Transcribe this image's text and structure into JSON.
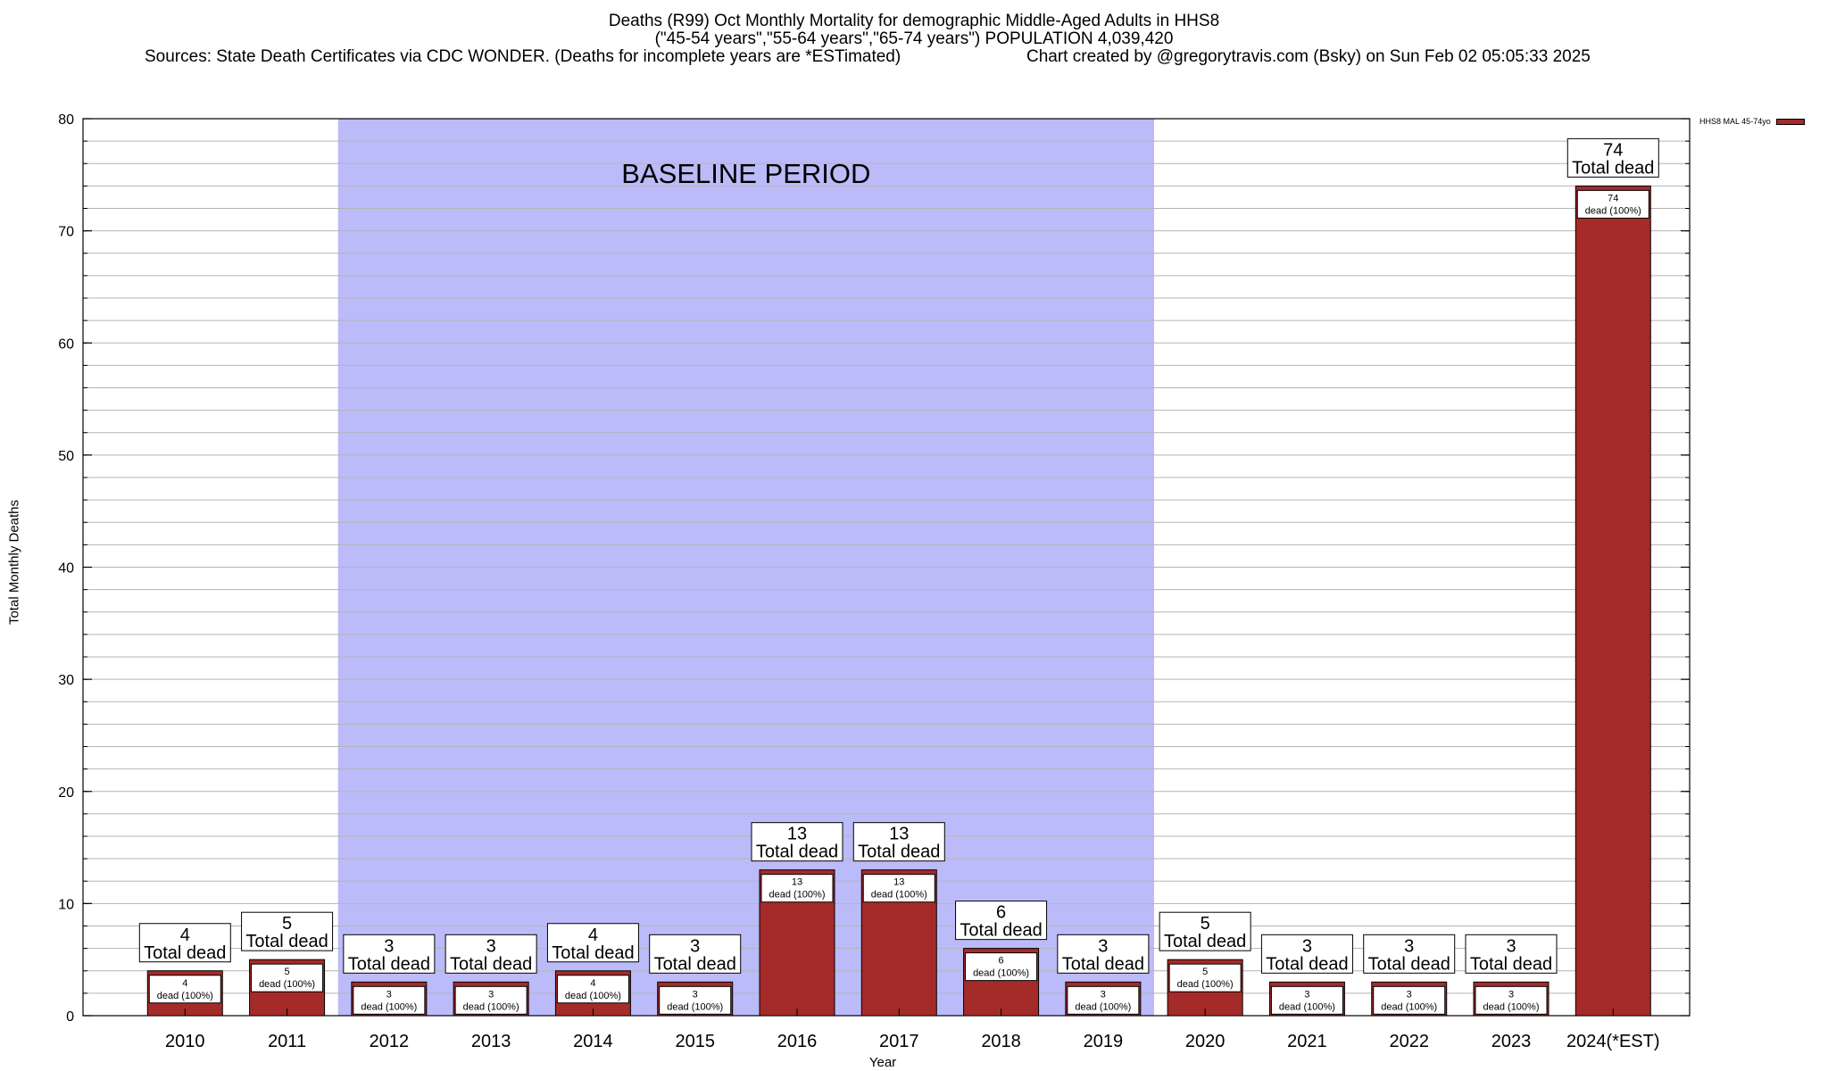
{
  "title": {
    "line1": "Deaths (R99) Oct Monthly Mortality for demographic Middle-Aged Adults in HHS8",
    "line2": "(\"45-54 years\",\"55-64 years\",\"65-74 years\") POPULATION 4,039,420",
    "sources": "Sources: State Death Certificates via CDC WONDER. (Deaths for incomplete years are *ESTimated)",
    "credit": "Chart created by @gregorytravis.com (Bsky) on Sun Feb 02 05:05:33 2025"
  },
  "chart_data": {
    "type": "bar",
    "xlabel": "Year",
    "ylabel": "Total Monthly Deaths",
    "ylim": [
      0,
      80
    ],
    "yticks": [
      0,
      10,
      20,
      30,
      40,
      50,
      60,
      70,
      80
    ],
    "grid": true,
    "legend_position": "top-right",
    "categories": [
      "2010",
      "2011",
      "2012",
      "2013",
      "2014",
      "2015",
      "2016",
      "2017",
      "2018",
      "2019",
      "2020",
      "2021",
      "2022",
      "2023",
      "2024(*EST)"
    ],
    "series": [
      {
        "name": "HHS8 MAL 45-74yo",
        "values": [
          4,
          5,
          3,
          3,
          4,
          3,
          13,
          13,
          6,
          3,
          5,
          3,
          3,
          3,
          74
        ],
        "color": "#a52a2a"
      }
    ],
    "total_label_suffix": "Total dead",
    "inner_label_suffix": "dead (100%)",
    "baseline": {
      "label": "BASELINE PERIOD",
      "start": "2012",
      "end": "2019",
      "color": "#bbbbf9"
    }
  }
}
